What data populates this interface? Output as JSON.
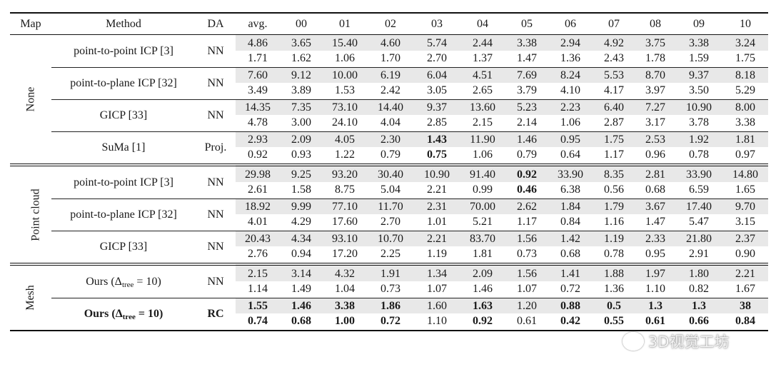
{
  "headers": [
    "Map",
    "Method",
    "DA",
    "avg.",
    "00",
    "01",
    "02",
    "03",
    "04",
    "05",
    "06",
    "07",
    "08",
    "09",
    "10"
  ],
  "groups": [
    {
      "label": "None",
      "methods": [
        {
          "name": "point-to-point ICP [3]",
          "da": "NN",
          "top": [
            "4.86",
            "3.65",
            "15.40",
            "4.60",
            "5.74",
            "2.44",
            "3.38",
            "2.94",
            "4.92",
            "3.75",
            "3.38",
            "3.24"
          ],
          "bottom": [
            "1.71",
            "1.62",
            "1.06",
            "1.70",
            "2.70",
            "1.37",
            "1.47",
            "1.36",
            "2.43",
            "1.78",
            "1.59",
            "1.75"
          ]
        },
        {
          "name": "point-to-plane ICP [32]",
          "da": "NN",
          "top": [
            "7.60",
            "9.12",
            "10.00",
            "6.19",
            "6.04",
            "4.51",
            "7.69",
            "8.24",
            "5.53",
            "8.70",
            "9.37",
            "8.18"
          ],
          "bottom": [
            "3.49",
            "3.89",
            "1.53",
            "2.42",
            "3.05",
            "2.65",
            "3.79",
            "4.10",
            "4.17",
            "3.97",
            "3.50",
            "5.29"
          ]
        },
        {
          "name": "GICP [33]",
          "da": "NN",
          "top": [
            "14.35",
            "7.35",
            "73.10",
            "14.40",
            "9.37",
            "13.60",
            "5.23",
            "2.23",
            "6.40",
            "7.27",
            "10.90",
            "8.00"
          ],
          "bottom": [
            "4.78",
            "3.00",
            "24.10",
            "4.04",
            "2.85",
            "2.15",
            "2.14",
            "1.06",
            "2.87",
            "3.17",
            "3.78",
            "3.38"
          ]
        },
        {
          "name": "SuMa [1]",
          "da": "Proj.",
          "top": [
            "2.93",
            "2.09",
            "4.05",
            "2.30",
            "1.43",
            "11.90",
            "1.46",
            "0.95",
            "1.75",
            "2.53",
            "1.92",
            "1.81"
          ],
          "bottom": [
            "0.92",
            "0.93",
            "1.22",
            "0.79",
            "0.75",
            "1.06",
            "0.79",
            "0.64",
            "1.17",
            "0.96",
            "0.78",
            "0.97"
          ]
        }
      ]
    },
    {
      "label": "Point cloud",
      "methods": [
        {
          "name": "point-to-point ICP [3]",
          "da": "NN",
          "top": [
            "29.98",
            "9.25",
            "93.20",
            "30.40",
            "10.90",
            "91.40",
            "0.92",
            "33.90",
            "8.35",
            "2.81",
            "33.90",
            "14.80"
          ],
          "bottom": [
            "2.61",
            "1.58",
            "8.75",
            "5.04",
            "2.21",
            "0.99",
            "0.46",
            "6.38",
            "0.56",
            "0.68",
            "6.59",
            "1.65"
          ]
        },
        {
          "name": "point-to-plane ICP [32]",
          "da": "NN",
          "top": [
            "18.92",
            "9.99",
            "77.10",
            "11.70",
            "2.31",
            "70.00",
            "2.62",
            "1.84",
            "1.79",
            "3.67",
            "17.40",
            "9.70"
          ],
          "bottom": [
            "4.01",
            "4.29",
            "17.60",
            "2.70",
            "1.01",
            "5.21",
            "1.17",
            "0.84",
            "1.16",
            "1.47",
            "5.47",
            "3.15"
          ]
        },
        {
          "name": "GICP [33]",
          "da": "NN",
          "top": [
            "20.43",
            "4.34",
            "93.10",
            "10.70",
            "2.21",
            "83.70",
            "1.56",
            "1.42",
            "1.19",
            "2.33",
            "21.80",
            "2.37"
          ],
          "bottom": [
            "2.76",
            "0.94",
            "17.20",
            "2.25",
            "1.19",
            "1.81",
            "0.73",
            "0.68",
            "0.78",
            "0.95",
            "2.91",
            "0.90"
          ]
        }
      ]
    },
    {
      "label": "Mesh",
      "methods": [
        {
          "name_prefix": "Ours (Δ",
          "name_sub": "tree",
          "name_suffix": " = 10)",
          "da": "NN",
          "top": [
            "2.15",
            "3.14",
            "4.32",
            "1.91",
            "1.34",
            "2.09",
            "1.56",
            "1.41",
            "1.88",
            "1.97",
            "1.80",
            "2.21"
          ],
          "bottom": [
            "1.14",
            "1.49",
            "1.04",
            "0.73",
            "1.07",
            "1.46",
            "1.07",
            "0.72",
            "1.36",
            "1.10",
            "0.82",
            "1.67"
          ]
        },
        {
          "name_prefix": "Ours (Δ",
          "name_sub": "tree",
          "name_suffix": " = 10)",
          "da": "RC",
          "top": [
            "1.55",
            "1.46",
            "3.38",
            "1.86",
            "1.60",
            "1.63",
            "1.20",
            "0.88",
            "0.5",
            "1.3",
            "1.3",
            "38"
          ],
          "bottom": [
            "0.74",
            "0.68",
            "1.00",
            "0.72",
            "1.10",
            "0.92",
            "0.61",
            "0.42",
            "0.55",
            "0.61",
            "0.66",
            "0.84"
          ]
        }
      ]
    }
  ],
  "bold_cells": [
    "SuMa [1]:top:03",
    "SuMa [1]:bottom:03",
    "point-to-point ICP [3] (Point cloud):top:05",
    "point-to-point ICP [3] (Point cloud):bottom:05"
  ],
  "watermark": "3D视觉工坊"
}
